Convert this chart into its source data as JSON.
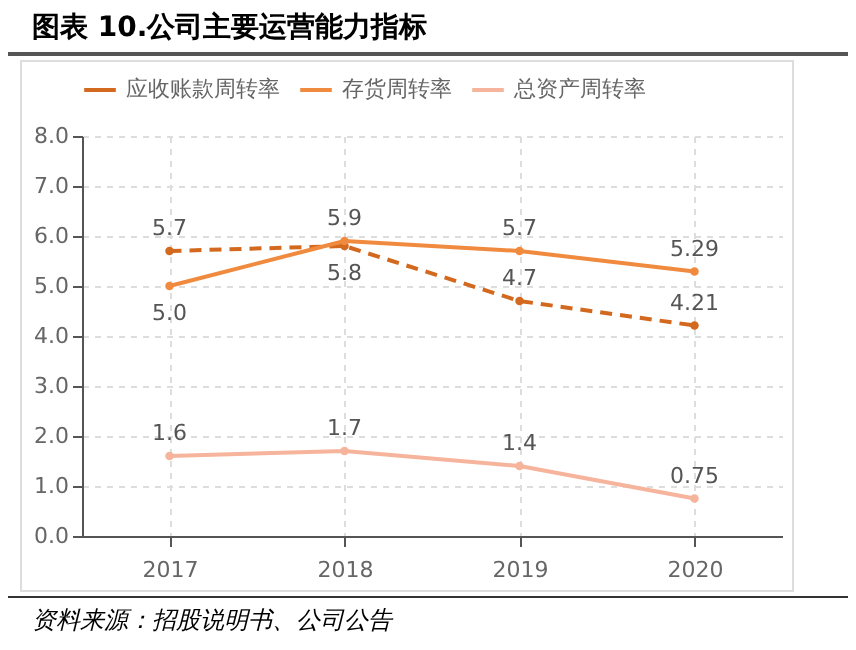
{
  "chart_data": {
    "type": "line",
    "title": "图表 10.公司主要运营能力指标",
    "categories": [
      "2017",
      "2018",
      "2019",
      "2020"
    ],
    "series": [
      {
        "name": "应收账款周转率",
        "color": "#d2691e",
        "line_style": "dashed",
        "values": [
          5.7,
          5.8,
          4.7,
          4.21
        ],
        "value_labels": [
          "5.7",
          "5.8",
          "4.7",
          "4.21"
        ]
      },
      {
        "name": "存货周转率",
        "color": "#f08a3e",
        "line_style": "solid",
        "values": [
          5.0,
          5.9,
          5.7,
          5.29
        ],
        "value_labels": [
          "5.0",
          "5.9",
          "5.7",
          "5.29"
        ]
      },
      {
        "name": "总资产周转率",
        "color": "#f6b49c",
        "line_style": "solid",
        "values": [
          1.6,
          1.7,
          1.4,
          0.75
        ],
        "value_labels": [
          "1.6",
          "1.7",
          "1.4",
          "0.75"
        ]
      }
    ],
    "ylim": [
      0,
      8
    ],
    "yticks": [
      {
        "value": 0,
        "label": "0.0"
      },
      {
        "value": 1,
        "label": "1.0"
      },
      {
        "value": 2,
        "label": "2.0"
      },
      {
        "value": 3,
        "label": "3.0"
      },
      {
        "value": 4,
        "label": "4.0"
      },
      {
        "value": 5,
        "label": "5.0"
      },
      {
        "value": 6,
        "label": "6.0"
      },
      {
        "value": 7,
        "label": "7.0"
      },
      {
        "value": 8,
        "label": "8.0"
      }
    ],
    "grid": true,
    "legend": "top",
    "marker": "circle",
    "annotations": [
      "资料来源：招股说明书、公司公告"
    ]
  }
}
